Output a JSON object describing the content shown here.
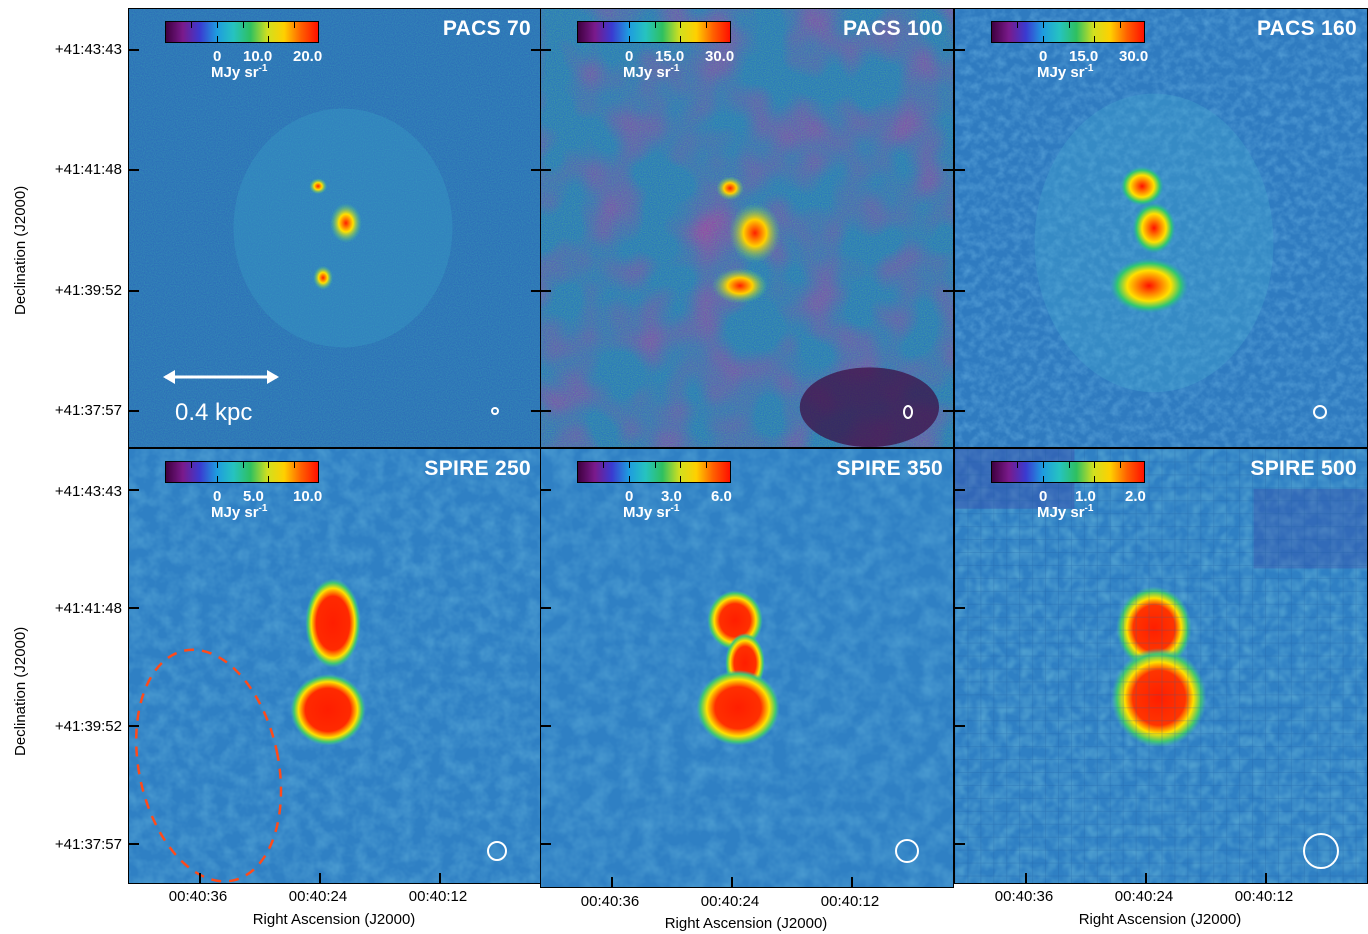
{
  "axes": {
    "ylabel": "Declination (J2000)",
    "xlabel": "Right Ascension (J2000)",
    "yticks": [
      "+41:43:43",
      "+41:41:48",
      "+41:39:52",
      "+41:37:57"
    ],
    "xticks": [
      "00:40:36",
      "00:40:24",
      "00:40:12"
    ]
  },
  "colors": {
    "background_map": "#2f7fc4",
    "hotspot": "#ff1e00",
    "ellipse": "#ff4a1a"
  },
  "panels": [
    {
      "title": "PACS 70",
      "cbar_ticks": [
        "0",
        "10.0",
        "20.0"
      ],
      "unit": "MJy sr",
      "unit_exp": "-1"
    },
    {
      "title": "PACS 100",
      "cbar_ticks": [
        "0",
        "15.0",
        "30.0"
      ],
      "unit": "MJy sr",
      "unit_exp": "-1"
    },
    {
      "title": "PACS 160",
      "cbar_ticks": [
        "0",
        "15.0",
        "30.0"
      ],
      "unit": "MJy sr",
      "unit_exp": "-1"
    },
    {
      "title": "SPIRE 250",
      "cbar_ticks": [
        "0",
        "5.0",
        "10.0"
      ],
      "unit": "MJy sr",
      "unit_exp": "-1"
    },
    {
      "title": "SPIRE 350",
      "cbar_ticks": [
        "0",
        "3.0",
        "6.0"
      ],
      "unit": "MJy sr",
      "unit_exp": "-1"
    },
    {
      "title": "SPIRE 500",
      "cbar_ticks": [
        "0",
        "1.0",
        "2.0"
      ],
      "unit": "MJy sr",
      "unit_exp": "-1"
    }
  ],
  "scale_bar": {
    "label": "0.4 kpc"
  }
}
